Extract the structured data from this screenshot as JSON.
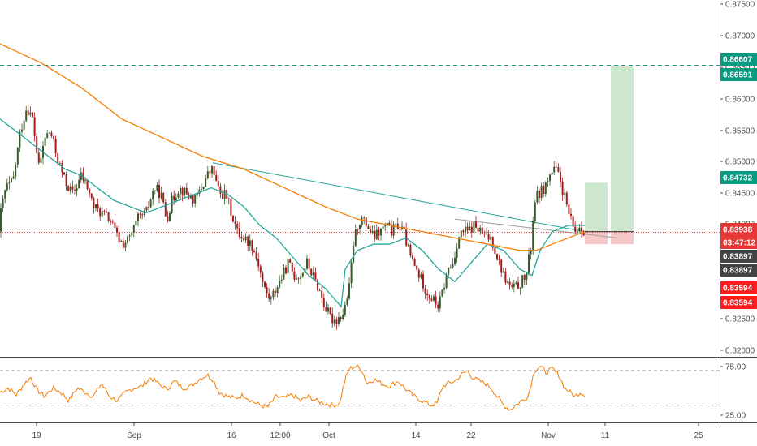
{
  "chart_data": [
    {
      "type": "candlestick",
      "title": "",
      "x_ticks": [
        "19",
        "Sep",
        "16",
        "12:00",
        "Oct",
        "14",
        "22",
        "Nov",
        "11",
        "25"
      ],
      "y_ticks": [
        "0.87500",
        "0.87000",
        "0.86500",
        "0.86000",
        "0.85500",
        "0.85000",
        "0.84500",
        "0.84000",
        "0.83500",
        "0.83000",
        "0.82500",
        "0.82000"
      ],
      "ylim": [
        0.8195,
        0.8765
      ],
      "grid": false,
      "last_price": 0.83938,
      "countdown": "03:47:12",
      "price_tags": [
        {
          "label": "0.86607",
          "value": 0.86607,
          "color": "#089981"
        },
        {
          "label": "0.86591",
          "value": 0.86591,
          "color": "#089981"
        },
        {
          "label": "0.84732",
          "value": 0.84732,
          "color": "#089981"
        },
        {
          "label": "0.83938",
          "value": 0.83938,
          "color": "#e53935"
        },
        {
          "label": "03:47:12",
          "value": 0.83938,
          "color": "#e53935"
        },
        {
          "label": "0.83897",
          "value": 0.83897,
          "color": "#444444"
        },
        {
          "label": "0.83897",
          "value": 0.83897,
          "color": "#444444"
        },
        {
          "label": "0.83594",
          "value": 0.83594,
          "color": "#ff1e1e"
        },
        {
          "label": "0.83594",
          "value": 0.83594,
          "color": "#ff1e1e"
        }
      ],
      "series": [
        {
          "kind": "candles",
          "anchors": [
            [
              0.845,
              0.8425
            ],
            [
              7,
              0.8465
            ],
            [
              16,
              0.8475
            ],
            [
              25,
              0.8555
            ],
            [
              33,
              0.8595
            ],
            [
              40,
              0.8575
            ],
            [
              48,
              0.8495
            ],
            [
              55,
              0.8545
            ],
            [
              62,
              0.8555
            ],
            [
              70,
              0.8515
            ],
            [
              80,
              0.8475
            ],
            [
              90,
              0.8455
            ],
            [
              100,
              0.8485
            ],
            [
              108,
              0.8465
            ],
            [
              115,
              0.8435
            ],
            [
              125,
              0.8425
            ],
            [
              135,
              0.8415
            ],
            [
              145,
              0.8385
            ],
            [
              152,
              0.8375
            ],
            [
              160,
              0.8385
            ],
            [
              170,
              0.8415
            ],
            [
              180,
              0.8425
            ],
            [
              190,
              0.8465
            ],
            [
              198,
              0.8455
            ],
            [
              205,
              0.8415
            ],
            [
              212,
              0.8445
            ],
            [
              220,
              0.8465
            ],
            [
              230,
              0.8455
            ],
            [
              240,
              0.8445
            ],
            [
              248,
              0.8465
            ],
            [
              255,
              0.8485
            ],
            [
              262,
              0.8495
            ],
            [
              270,
              0.8455
            ],
            [
              278,
              0.8455
            ],
            [
              285,
              0.8425
            ],
            [
              292,
              0.8395
            ],
            [
              300,
              0.8385
            ],
            [
              310,
              0.8375
            ],
            [
              318,
              0.8345
            ],
            [
              325,
              0.8305
            ],
            [
              333,
              0.8285
            ],
            [
              340,
              0.8305
            ],
            [
              348,
              0.8325
            ],
            [
              355,
              0.8345
            ],
            [
              362,
              0.8325
            ],
            [
              370,
              0.8325
            ],
            [
              378,
              0.8345
            ],
            [
              385,
              0.8325
            ],
            [
              392,
              0.8305
            ],
            [
              400,
              0.8275
            ],
            [
              408,
              0.8255
            ],
            [
              415,
              0.8255
            ],
            [
              423,
              0.8265
            ],
            [
              430,
              0.8305
            ],
            [
              435,
              0.8375
            ],
            [
              440,
              0.8405
            ],
            [
              445,
              0.8415
            ],
            [
              452,
              0.8405
            ],
            [
              460,
              0.8385
            ],
            [
              468,
              0.8395
            ],
            [
              475,
              0.8405
            ],
            [
              482,
              0.8395
            ],
            [
              490,
              0.8405
            ],
            [
              497,
              0.8395
            ],
            [
              505,
              0.8355
            ],
            [
              512,
              0.8335
            ],
            [
              520,
              0.8315
            ],
            [
              527,
              0.8295
            ],
            [
              534,
              0.8285
            ],
            [
              540,
              0.8275
            ],
            [
              546,
              0.8305
            ],
            [
              552,
              0.8335
            ],
            [
              558,
              0.8345
            ],
            [
              564,
              0.8385
            ],
            [
              570,
              0.8395
            ],
            [
              577,
              0.8395
            ],
            [
              584,
              0.8405
            ],
            [
              591,
              0.8395
            ],
            [
              598,
              0.8385
            ],
            [
              605,
              0.8385
            ],
            [
              612,
              0.8355
            ],
            [
              620,
              0.8325
            ],
            [
              628,
              0.8305
            ],
            [
              635,
              0.8305
            ],
            [
              642,
              0.8315
            ],
            [
              648,
              0.8325
            ],
            [
              654,
              0.8375
            ],
            [
              658,
              0.8445
            ],
            [
              663,
              0.8455
            ],
            [
              670,
              0.8465
            ],
            [
              677,
              0.8485
            ],
            [
              684,
              0.8495
            ],
            [
              690,
              0.8475
            ],
            [
              696,
              0.8445
            ],
            [
              702,
              0.8415
            ],
            [
              708,
              0.8395
            ],
            [
              714,
              0.8405
            ],
            [
              720,
              0.8395
            ]
          ]
        },
        {
          "kind": "ma-teal",
          "color": "#26a69a",
          "points": [
            [
              0,
              0.8575
            ],
            [
              20,
              0.8555
            ],
            [
              40,
              0.8535
            ],
            [
              60,
              0.8515
            ],
            [
              80,
              0.8495
            ],
            [
              100,
              0.8485
            ],
            [
              120,
              0.8465
            ],
            [
              140,
              0.8445
            ],
            [
              160,
              0.8435
            ],
            [
              180,
              0.8425
            ],
            [
              200,
              0.8435
            ],
            [
              220,
              0.8445
            ],
            [
              240,
              0.8455
            ],
            [
              260,
              0.8465
            ],
            [
              280,
              0.8455
            ],
            [
              300,
              0.8435
            ],
            [
              320,
              0.8405
            ],
            [
              340,
              0.8385
            ],
            [
              360,
              0.8355
            ],
            [
              380,
              0.8325
            ],
            [
              400,
              0.8305
            ],
            [
              420,
              0.8275
            ],
            [
              425,
              0.8335
            ],
            [
              440,
              0.8365
            ],
            [
              460,
              0.8375
            ],
            [
              480,
              0.8375
            ],
            [
              500,
              0.8385
            ],
            [
              520,
              0.8365
            ],
            [
              540,
              0.8335
            ],
            [
              560,
              0.8315
            ],
            [
              580,
              0.8345
            ],
            [
              600,
              0.8375
            ],
            [
              620,
              0.8365
            ],
            [
              640,
              0.8335
            ],
            [
              655,
              0.8325
            ],
            [
              665,
              0.8365
            ],
            [
              680,
              0.8395
            ],
            [
              700,
              0.8405
            ],
            [
              720,
              0.8405
            ]
          ]
        },
        {
          "kind": "ma-orange",
          "color": "#f57c00",
          "points": [
            [
              0,
              0.8695
            ],
            [
              50,
              0.8665
            ],
            [
              100,
              0.8625
            ],
            [
              150,
              0.8575
            ],
            [
              200,
              0.8545
            ],
            [
              250,
              0.8515
            ],
            [
              300,
              0.8495
            ],
            [
              350,
              0.8465
            ],
            [
              400,
              0.8435
            ],
            [
              440,
              0.8415
            ],
            [
              480,
              0.8405
            ],
            [
              520,
              0.8395
            ],
            [
              560,
              0.8385
            ],
            [
              600,
              0.8375
            ],
            [
              640,
              0.8365
            ],
            [
              660,
              0.8365
            ],
            [
              680,
              0.8375
            ],
            [
              700,
              0.8385
            ],
            [
              720,
              0.8395
            ]
          ]
        },
        {
          "kind": "trendline-teal",
          "color": "#26a69a",
          "points": [
            [
              262,
              0.8505
            ],
            [
              720,
              0.8395
            ]
          ]
        },
        {
          "kind": "trendline-grey",
          "color": "#9e9e9e",
          "points": [
            [
              560,
              0.8415
            ],
            [
              760,
              0.8385
            ]
          ]
        },
        {
          "kind": "hline-dashed",
          "color": "#089981",
          "value": 0.86607
        },
        {
          "kind": "hline-dotted",
          "color": "#e53935",
          "value": 0.83938
        },
        {
          "kind": "rect-green",
          "color": "#a5d6a7",
          "x0": 720,
          "x1": 748,
          "y0": 0.8395,
          "y1": 0.84732
        },
        {
          "kind": "rect-red",
          "color": "#ef9a9a",
          "x0": 720,
          "x1": 748,
          "y0": 0.8375,
          "y1": 0.8395
        },
        {
          "kind": "rect-green",
          "color": "#a5d6a7",
          "x0": 752,
          "x1": 780,
          "y0": 0.8395,
          "y1": 0.86591
        },
        {
          "kind": "rect-red",
          "color": "#ef9a9a",
          "x0": 752,
          "x1": 780,
          "y0": 0.8375,
          "y1": 0.8395
        }
      ]
    },
    {
      "type": "line",
      "title": "",
      "y_ticks": [
        "75.00",
        "25.00"
      ],
      "ylim": [
        10,
        85
      ],
      "levels": [
        70,
        30
      ],
      "series": [
        {
          "kind": "rsi",
          "color": "#f57c00",
          "anchors": [
            [
              0,
              45
            ],
            [
              10,
              50
            ],
            [
              20,
              42
            ],
            [
              30,
              55
            ],
            [
              38,
              62
            ],
            [
              45,
              48
            ],
            [
              55,
              40
            ],
            [
              65,
              50
            ],
            [
              75,
              45
            ],
            [
              85,
              35
            ],
            [
              95,
              50
            ],
            [
              105,
              45
            ],
            [
              115,
              40
            ],
            [
              125,
              55
            ],
            [
              135,
              40
            ],
            [
              145,
              35
            ],
            [
              155,
              45
            ],
            [
              165,
              50
            ],
            [
              175,
              52
            ],
            [
              185,
              62
            ],
            [
              195,
              55
            ],
            [
              205,
              48
            ],
            [
              215,
              58
            ],
            [
              225,
              50
            ],
            [
              235,
              52
            ],
            [
              245,
              60
            ],
            [
              255,
              65
            ],
            [
              262,
              60
            ],
            [
              270,
              45
            ],
            [
              280,
              40
            ],
            [
              290,
              38
            ],
            [
              300,
              42
            ],
            [
              310,
              35
            ],
            [
              320,
              30
            ],
            [
              330,
              28
            ],
            [
              340,
              40
            ],
            [
              350,
              38
            ],
            [
              360,
              42
            ],
            [
              370,
              35
            ],
            [
              380,
              40
            ],
            [
              390,
              35
            ],
            [
              400,
              32
            ],
            [
              410,
              30
            ],
            [
              418,
              32
            ],
            [
              425,
              60
            ],
            [
              430,
              72
            ],
            [
              438,
              75
            ],
            [
              445,
              72
            ],
            [
              452,
              55
            ],
            [
              460,
              60
            ],
            [
              470,
              55
            ],
            [
              480,
              52
            ],
            [
              490,
              58
            ],
            [
              500,
              48
            ],
            [
              510,
              40
            ],
            [
              520,
              35
            ],
            [
              530,
              30
            ],
            [
              538,
              32
            ],
            [
              545,
              52
            ],
            [
              552,
              55
            ],
            [
              560,
              58
            ],
            [
              568,
              65
            ],
            [
              575,
              70
            ],
            [
              582,
              62
            ],
            [
              590,
              58
            ],
            [
              598,
              55
            ],
            [
              605,
              50
            ],
            [
              612,
              40
            ],
            [
              620,
              30
            ],
            [
              628,
              25
            ],
            [
              635,
              30
            ],
            [
              642,
              35
            ],
            [
              650,
              40
            ],
            [
              658,
              70
            ],
            [
              665,
              75
            ],
            [
              672,
              68
            ],
            [
              680,
              72
            ],
            [
              688,
              65
            ],
            [
              695,
              50
            ],
            [
              702,
              45
            ],
            [
              708,
              40
            ],
            [
              714,
              45
            ],
            [
              720,
              42
            ]
          ]
        }
      ]
    }
  ]
}
